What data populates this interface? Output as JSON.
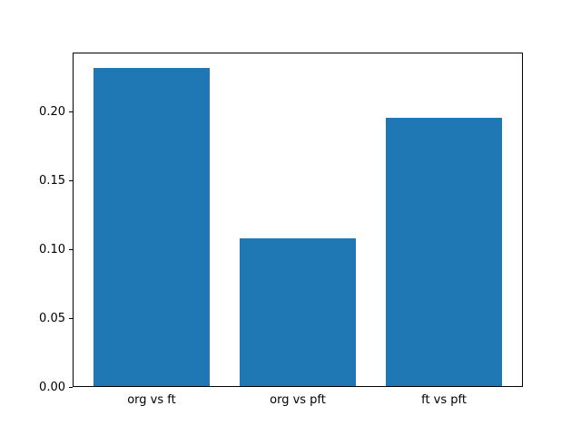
{
  "chart_data": {
    "type": "bar",
    "title": "",
    "xlabel": "",
    "ylabel": "",
    "categories": [
      "org vs ft",
      "org vs pft",
      "ft vs pft"
    ],
    "values": [
      0.232,
      0.108,
      0.196
    ],
    "ylim": [
      0,
      0.2436
    ],
    "yticks": [
      0,
      0.05,
      0.1,
      0.15,
      0.2
    ],
    "ytick_labels": [
      "0.00",
      "0.05",
      "0.10",
      "0.15",
      "0.20"
    ],
    "bar_color": "#1f77b4",
    "background_color": "#ffffff",
    "axis_color": "#000000",
    "bar_width_fraction": 0.8,
    "grid": false,
    "legend": null
  }
}
